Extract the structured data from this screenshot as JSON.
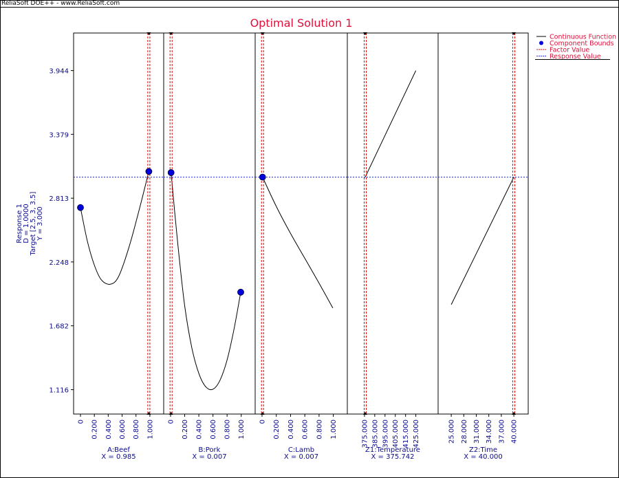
{
  "app_title": "ReliaSoft DOE++ - www.ReliaSoft.com",
  "colors": {
    "title": "#e0103a",
    "axis_text": "#0a0a8c",
    "function": "#000000",
    "bounds": "#0000dd",
    "factor_line": "#e00000",
    "response_line": "#2030ff"
  },
  "chart_data": {
    "type": "line",
    "title": "Optimal Solution 1",
    "ylabel_lines": [
      "Response 1",
      "D = 1.0000",
      "Target [2.5, 3, 3.5]",
      "Y = 3.000"
    ],
    "y_ticks": [
      "3.944",
      "3.379",
      "2.813",
      "2.248",
      "1.682",
      "1.116"
    ],
    "y_tick_values": [
      3.944,
      3.379,
      2.813,
      2.248,
      1.682,
      1.116
    ],
    "ylim": [
      0.9,
      4.277
    ],
    "response_value": 3.0,
    "legend": {
      "placement": "right",
      "entries": [
        "Continuous Function",
        "Component Bounds",
        "Factor Value",
        "Response Value"
      ]
    },
    "panels": [
      {
        "label": "A:Beef",
        "value_text": "X = 0.985",
        "factor_value": 0.985,
        "xlim": [
          0,
          1.1
        ],
        "ticks": [
          "0",
          "0.200",
          "0.400",
          "0.600",
          "0.800",
          "1.000"
        ],
        "tick_values": [
          0,
          0.2,
          0.4,
          0.6,
          0.8,
          1.0
        ],
        "x": [
          0,
          0.1,
          0.2,
          0.3,
          0.43,
          0.55,
          0.7,
          0.85,
          0.985
        ],
        "y": [
          2.73,
          2.43,
          2.22,
          2.09,
          2.05,
          2.12,
          2.38,
          2.72,
          3.05
        ],
        "bounds": [
          {
            "x": 0,
            "y": 2.73
          },
          {
            "x": 0.985,
            "y": 3.05
          }
        ]
      },
      {
        "label": "B:Pork",
        "value_text": "X = 0.007",
        "factor_value": 0.007,
        "xlim": [
          0,
          1.1
        ],
        "ticks": [
          "0",
          "0.200",
          "0.400",
          "0.600",
          "0.800",
          "1.000"
        ],
        "tick_values": [
          0,
          0.2,
          0.4,
          0.6,
          0.8,
          1.0
        ],
        "x": [
          0.007,
          0.1,
          0.2,
          0.3,
          0.4,
          0.5,
          0.6,
          0.7,
          0.8,
          0.9,
          0.993
        ],
        "y": [
          3.04,
          2.42,
          1.86,
          1.49,
          1.26,
          1.14,
          1.12,
          1.2,
          1.38,
          1.66,
          1.98
        ],
        "bounds": [
          {
            "x": 0.007,
            "y": 3.04
          },
          {
            "x": 0.993,
            "y": 1.98
          }
        ]
      },
      {
        "label": "C:Lamb",
        "value_text": "X = 0.007",
        "factor_value": 0.007,
        "xlim": [
          0,
          1.1
        ],
        "ticks": [
          "0",
          "0.200",
          "0.400",
          "0.600",
          "0.800",
          "1.000"
        ],
        "tick_values": [
          0,
          0.2,
          0.4,
          0.6,
          0.8,
          1.0
        ],
        "x": [
          0.007,
          0.2,
          0.4,
          0.6,
          0.8,
          0.993
        ],
        "y": [
          3.0,
          2.74,
          2.5,
          2.28,
          2.06,
          1.84
        ],
        "bounds": [
          {
            "x": 0.007,
            "y": 3.0
          }
        ]
      },
      {
        "label": "Z1:Temperature",
        "value_text": "X = 375.742",
        "factor_value": 375.742,
        "xlim": [
          365,
          440
        ],
        "ticks": [
          "375.000",
          "385.000",
          "395.000",
          "405.000",
          "415.000",
          "425.000"
        ],
        "tick_values": [
          375,
          385,
          395,
          405,
          415,
          425
        ],
        "x": [
          375.742,
          425
        ],
        "y": [
          3.0,
          3.944
        ],
        "bounds": []
      },
      {
        "label": "Z2:Time",
        "value_text": "X = 40.000",
        "factor_value": 40,
        "xlim": [
          23.5,
          41.8
        ],
        "ticks": [
          "25.000",
          "28.000",
          "31.000",
          "34.000",
          "37.000",
          "40.000"
        ],
        "tick_values": [
          25,
          28,
          31,
          34,
          37,
          40
        ],
        "x": [
          25,
          40
        ],
        "y": [
          1.87,
          3.0
        ],
        "bounds": []
      }
    ]
  }
}
